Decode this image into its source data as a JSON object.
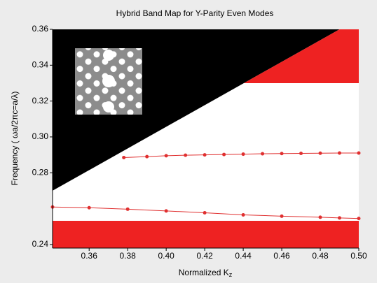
{
  "chart_data": {
    "type": "bandmap",
    "title": "Hybrid Band Map for Y-Parity Even Modes",
    "xlabel": "Normalized K",
    "xlabel_sub": "z",
    "ylabel": "Frequency ( ωa/2πc=a/λ)",
    "xlim": [
      0.341,
      0.5
    ],
    "ylim": [
      0.238,
      0.36
    ],
    "xticks": [
      0.36,
      0.38,
      {
        "value": 0.4,
        "label": "0.40"
      },
      0.42,
      0.44,
      0.46,
      0.48,
      {
        "value": 0.5,
        "label": "0.50"
      }
    ],
    "yticks": [
      0.24,
      0.28,
      {
        "value": 0.3,
        "label": "0.30"
      },
      0.32,
      0.34,
      0.36
    ],
    "regions": [
      {
        "color": "#000000",
        "x": [
          0.341,
          0.49,
          0.341
        ],
        "y": [
          0.27,
          0.36,
          0.36
        ]
      },
      {
        "color": "#ee2222",
        "x": [
          0.4403,
          0.5,
          0.5,
          0.49
        ],
        "y": [
          0.33,
          0.33,
          0.36,
          0.36
        ]
      },
      {
        "color": "#ee2222",
        "x": [
          0.341,
          0.5,
          0.5,
          0.341
        ],
        "y": [
          0.2532,
          0.2532,
          0.238,
          0.238
        ]
      }
    ],
    "series": [
      {
        "color": "#e03030",
        "x": [
          0.378,
          0.39,
          0.4,
          0.41,
          0.42,
          0.43,
          0.44,
          0.45,
          0.46,
          0.47,
          0.48,
          0.49,
          0.5
        ],
        "values": [
          0.2885,
          0.289,
          0.2895,
          0.2898,
          0.29,
          0.2902,
          0.2904,
          0.2906,
          0.2907,
          0.2908,
          0.2909,
          0.291,
          0.291
        ]
      },
      {
        "color": "#e03030",
        "x": [
          0.341,
          0.36,
          0.38,
          0.4,
          0.42,
          0.44,
          0.46,
          0.48,
          0.49,
          0.5
        ],
        "values": [
          0.2609,
          0.2605,
          0.2597,
          0.2587,
          0.2577,
          0.2565,
          0.2558,
          0.2552,
          0.2548,
          0.2545
        ]
      }
    ]
  }
}
